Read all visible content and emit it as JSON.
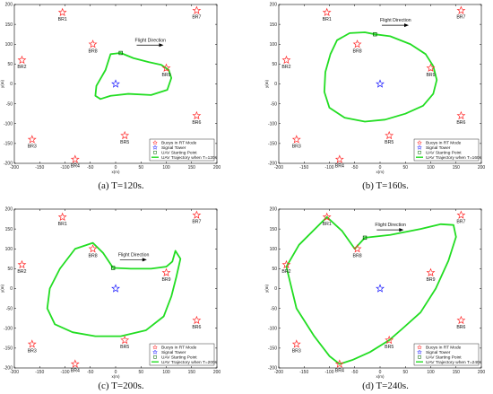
{
  "colors": {
    "buoy": "#ff2a2a",
    "tower": "#1c1cff",
    "start": "#006400",
    "trajectory": "#22dd22",
    "axis": "#000000"
  },
  "chart_data": [
    {
      "type": "scatter",
      "caption": "(a)  T=120s.",
      "xlabel": "x(m)",
      "ylabel": "y(m)",
      "xlim": [
        -200,
        200
      ],
      "ylim": [
        -200,
        200
      ],
      "xticks": [
        -200,
        -150,
        -100,
        -50,
        0,
        50,
        100,
        150,
        200
      ],
      "yticks": [
        -200,
        -150,
        -100,
        -50,
        0,
        50,
        100,
        150,
        200
      ],
      "buoys": [
        {
          "name": "BR1",
          "x": -105,
          "y": 180
        },
        {
          "name": "BR7",
          "x": 160,
          "y": 185
        },
        {
          "name": "BR2",
          "x": -185,
          "y": 60
        },
        {
          "name": "BR8",
          "x": -45,
          "y": 100
        },
        {
          "name": "BR9",
          "x": 100,
          "y": 40
        },
        {
          "name": "BR3",
          "x": -165,
          "y": -140
        },
        {
          "name": "BR5",
          "x": 18,
          "y": -130
        },
        {
          "name": "BR6",
          "x": 160,
          "y": -80
        },
        {
          "name": "BR4",
          "x": -80,
          "y": -190
        }
      ],
      "tower": {
        "x": 0,
        "y": 0
      },
      "start": {
        "x": 10,
        "y": 78
      },
      "trajectory": {
        "x": [
          10,
          35,
          65,
          90,
          105,
          110,
          102,
          70,
          25,
          -10,
          -30,
          -40,
          -38,
          -20,
          -10,
          10
        ],
        "y": [
          78,
          65,
          55,
          48,
          35,
          15,
          -15,
          -28,
          -25,
          -30,
          -38,
          -30,
          -5,
          35,
          75,
          78
        ]
      },
      "flight_direction": {
        "label": "Flight Direction",
        "x": 38,
        "y": 100
      },
      "legend": {
        "placement": "bottom-right",
        "entries": [
          "Buoys in RT Mode",
          "Signal Tower",
          "UAV Starting Point",
          "UAV Trajectory when T=120s"
        ]
      }
    },
    {
      "type": "scatter",
      "caption": "(b)  T=160s.",
      "xlabel": "x(m)",
      "ylabel": "y(m)",
      "xlim": [
        -200,
        200
      ],
      "ylim": [
        -200,
        200
      ],
      "xticks": [
        -200,
        -150,
        -100,
        -50,
        0,
        50,
        100,
        150,
        200
      ],
      "yticks": [
        -200,
        -150,
        -100,
        -50,
        0,
        50,
        100,
        150,
        200
      ],
      "buoys": [
        {
          "name": "BR1",
          "x": -105,
          "y": 180
        },
        {
          "name": "BR7",
          "x": 160,
          "y": 185
        },
        {
          "name": "BR2",
          "x": -185,
          "y": 60
        },
        {
          "name": "BR8",
          "x": -45,
          "y": 100
        },
        {
          "name": "BR9",
          "x": 100,
          "y": 40
        },
        {
          "name": "BR3",
          "x": -165,
          "y": -140
        },
        {
          "name": "BR5",
          "x": 18,
          "y": -130
        },
        {
          "name": "BR6",
          "x": 160,
          "y": -80
        },
        {
          "name": "BR4",
          "x": -80,
          "y": -190
        }
      ],
      "tower": {
        "x": 0,
        "y": 0
      },
      "start": {
        "x": -10,
        "y": 125
      },
      "trajectory": {
        "x": [
          -10,
          20,
          60,
          90,
          105,
          112,
          105,
          85,
          50,
          10,
          -30,
          -70,
          -100,
          -110,
          -108,
          -98,
          -85,
          -60,
          -30,
          -10
        ],
        "y": [
          125,
          120,
          100,
          75,
          45,
          10,
          -25,
          -55,
          -75,
          -90,
          -95,
          -85,
          -60,
          -20,
          30,
          75,
          110,
          128,
          130,
          125
        ]
      },
      "flight_direction": {
        "label": "Flight Direction",
        "x": 0,
        "y": 150
      },
      "legend": {
        "placement": "bottom-right",
        "entries": [
          "Buoys in RT Mode",
          "Signal Tower",
          "UAV Starting Point",
          "UAV Trajectory when T=160s"
        ]
      }
    },
    {
      "type": "scatter",
      "caption": "(c)  T=200s.",
      "xlabel": "x(m)",
      "ylabel": "y(m)",
      "xlim": [
        -200,
        200
      ],
      "ylim": [
        -200,
        200
      ],
      "xticks": [
        -200,
        -150,
        -100,
        -50,
        0,
        50,
        100,
        150,
        200
      ],
      "yticks": [
        -200,
        -150,
        -100,
        -50,
        0,
        50,
        100,
        150,
        200
      ],
      "buoys": [
        {
          "name": "BR1",
          "x": -105,
          "y": 180
        },
        {
          "name": "BR7",
          "x": 160,
          "y": 185
        },
        {
          "name": "BR2",
          "x": -185,
          "y": 60
        },
        {
          "name": "BR8",
          "x": -45,
          "y": 100
        },
        {
          "name": "BR9",
          "x": 100,
          "y": 40
        },
        {
          "name": "BR3",
          "x": -165,
          "y": -140
        },
        {
          "name": "BR5",
          "x": 18,
          "y": -130
        },
        {
          "name": "BR6",
          "x": 160,
          "y": -80
        },
        {
          "name": "BR4",
          "x": -80,
          "y": -190
        }
      ],
      "tower": {
        "x": 0,
        "y": 0
      },
      "start": {
        "x": -5,
        "y": 52
      },
      "trajectory": {
        "x": [
          -5,
          30,
          70,
          100,
          112,
          118,
          128,
          120,
          110,
          95,
          60,
          10,
          -40,
          -85,
          -120,
          -135,
          -130,
          -110,
          -80,
          -45,
          -25,
          -5
        ],
        "y": [
          52,
          50,
          50,
          55,
          68,
          95,
          75,
          30,
          -20,
          -70,
          -105,
          -120,
          -120,
          -110,
          -90,
          -50,
          0,
          50,
          100,
          115,
          90,
          52
        ]
      },
      "flight_direction": {
        "label": "Flight Direction",
        "x": 5,
        "y": 75
      },
      "legend": {
        "placement": "bottom-right",
        "entries": [
          "Buoys in RT Mode",
          "Signal Tower",
          "UAV Starting Point",
          "UAV Trajectory when T=200s"
        ]
      }
    },
    {
      "type": "scatter",
      "caption": "(d)  T=240s.",
      "xlabel": "x(m)",
      "ylabel": "y(m)",
      "xlim": [
        -200,
        200
      ],
      "ylim": [
        -200,
        200
      ],
      "xticks": [
        -200,
        -150,
        -100,
        -50,
        0,
        50,
        100,
        150,
        200
      ],
      "yticks": [
        -200,
        -150,
        -100,
        -50,
        0,
        50,
        100,
        150,
        200
      ],
      "buoys": [
        {
          "name": "BR1",
          "x": -105,
          "y": 180
        },
        {
          "name": "BR7",
          "x": 160,
          "y": 185
        },
        {
          "name": "BR2",
          "x": -185,
          "y": 60
        },
        {
          "name": "BR8",
          "x": -45,
          "y": 100
        },
        {
          "name": "BR9",
          "x": 100,
          "y": 40
        },
        {
          "name": "BR3",
          "x": -165,
          "y": -140
        },
        {
          "name": "BR5",
          "x": 18,
          "y": -130
        },
        {
          "name": "BR6",
          "x": 160,
          "y": -80
        },
        {
          "name": "BR4",
          "x": -80,
          "y": -190
        }
      ],
      "tower": {
        "x": 0,
        "y": 0
      },
      "start": {
        "x": -30,
        "y": 128
      },
      "trajectory": {
        "x": [
          -30,
          20,
          80,
          120,
          145,
          150,
          135,
          110,
          80,
          45,
          18,
          -20,
          -55,
          -80,
          -100,
          -130,
          -165,
          -185,
          -160,
          -105,
          -75,
          -50,
          -30
        ],
        "y": [
          128,
          135,
          150,
          162,
          160,
          130,
          70,
          0,
          -60,
          -100,
          -130,
          -160,
          -180,
          -190,
          -170,
          -120,
          -50,
          55,
          110,
          180,
          145,
          100,
          128
        ]
      },
      "flight_direction": {
        "label": "Flight Direction",
        "x": -10,
        "y": 150
      },
      "legend": {
        "placement": "bottom-right",
        "entries": [
          "Buoys in RT Mode",
          "Signal Tower",
          "UAV Starting Point",
          "UAV Trajectory when T=240s"
        ]
      }
    }
  ]
}
